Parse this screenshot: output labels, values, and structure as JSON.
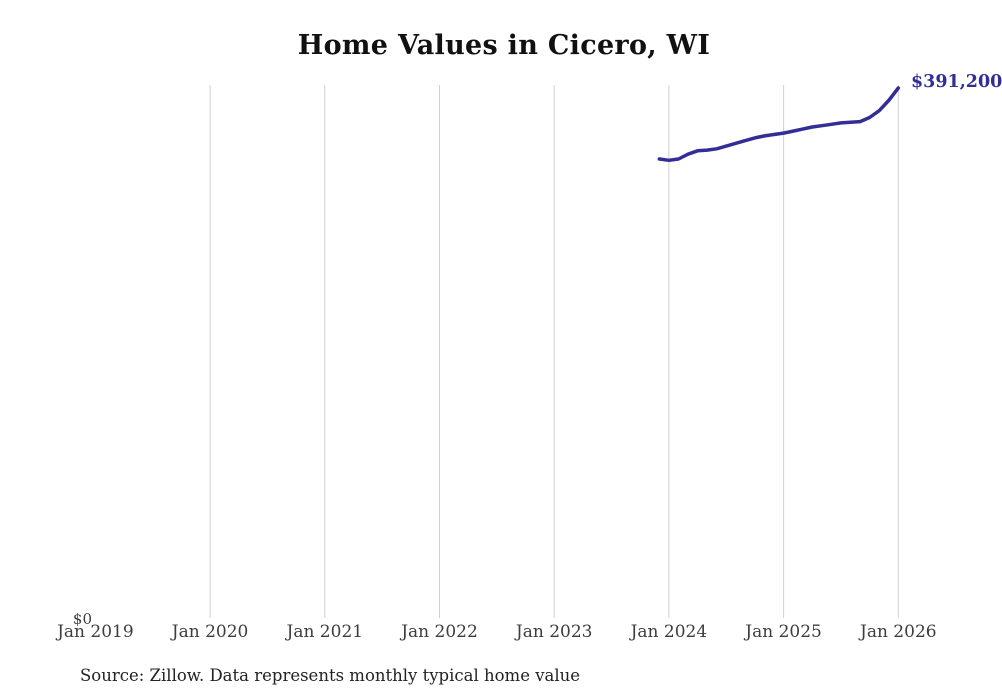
{
  "page": {
    "title": "Home Values in Cicero, WI",
    "source_note": "Source: Zillow. Data represents monthly typical home value"
  },
  "chart_data": {
    "type": "line",
    "title": "Home Values in Cicero, WI",
    "series_name": "Monthly typical home value",
    "x": [
      "Dec 2023",
      "Jan 2024",
      "Feb 2024",
      "Mar 2024",
      "Apr 2024",
      "May 2024",
      "Jun 2024",
      "Jul 2024",
      "Aug 2024",
      "Sep 2024",
      "Oct 2024",
      "Nov 2024",
      "Dec 2024",
      "Jan 2025",
      "Feb 2025",
      "Mar 2025",
      "Apr 2025",
      "May 2025",
      "Jun 2025",
      "Jul 2025",
      "Aug 2025",
      "Sep 2025",
      "Oct 2025",
      "Nov 2025",
      "Dec 2025",
      "Jan 2026"
    ],
    "values": [
      339000,
      338000,
      339000,
      342500,
      345000,
      345500,
      346500,
      348500,
      350500,
      352500,
      354500,
      356000,
      357000,
      358000,
      359500,
      361000,
      362500,
      363500,
      364500,
      365500,
      366000,
      366500,
      369500,
      374500,
      382000,
      391200
    ],
    "x_tick_labels": [
      "Jan 2019",
      "Jan 2020",
      "Jan 2021",
      "Jan 2022",
      "Jan 2023",
      "Jan 2024",
      "Jan 2025",
      "Jan 2026"
    ],
    "y_axis": {
      "zero_label": "$0",
      "min": 0
    },
    "end_label": "$391,200",
    "end_value": 391200,
    "xlabel": "",
    "ylabel": "",
    "legend": "none",
    "grid": "vertical",
    "colors": {
      "line": "#322e96",
      "end_label": "#322e96",
      "gridline": "#d0d0d0",
      "axis_text": "#3d3d3d",
      "title_text": "#111111",
      "background": "#ffffff"
    },
    "source_note": "Source: Zillow. Data represents monthly typical home value"
  }
}
